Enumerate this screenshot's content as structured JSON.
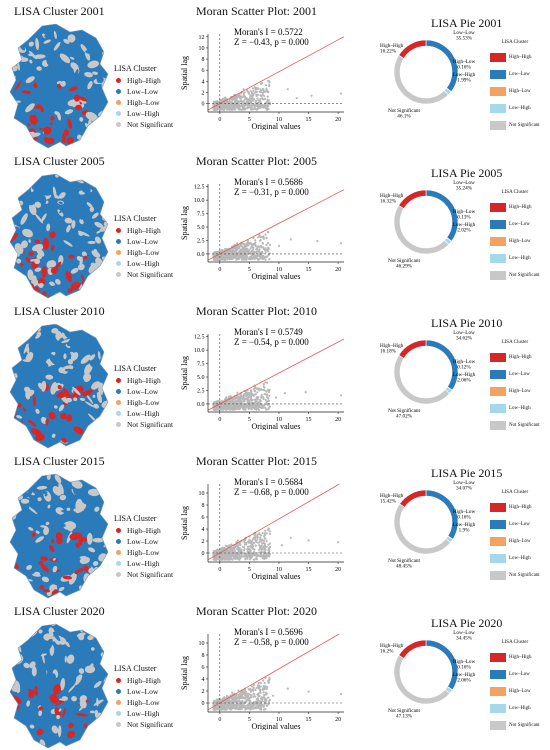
{
  "legend": {
    "title": "LISA Cluster",
    "items": [
      {
        "label": "High–High",
        "color": "#d62728"
      },
      {
        "label": "Low–Low",
        "color": "#2b7bba"
      },
      {
        "label": "High–Low",
        "color": "#f4a261"
      },
      {
        "label": "Low–High",
        "color": "#a6d8ec"
      },
      {
        "label": "Not Significant",
        "color": "#c8c8c8"
      }
    ]
  },
  "panels": [
    {
      "map_title": "LISA Cluster 2001",
      "scatter_title": "Moran Scatter Plot: 2001",
      "moran_line": "Moran's I = 0.5722",
      "z_line": "Z = −0.43, p = 0.000",
      "pie_title": "LISA Pie 2001",
      "chart_data": {
        "type": "scatter",
        "title": "Moran Scatter Plot: 2001",
        "xlabel": "Original values",
        "ylabel": "Spatial lag",
        "xlim": [
          -2,
          21
        ],
        "ylim": [
          -1.5,
          12.5
        ],
        "xticks": [
          0,
          5,
          10,
          15,
          20
        ],
        "yticks": [
          0,
          2,
          4,
          6,
          8,
          10,
          12
        ],
        "slope": 0.5722,
        "outliers": [
          [
            20.5,
            1.8
          ],
          [
            15.5,
            1.4
          ],
          [
            13.0,
            1.0
          ],
          [
            11.5,
            2.6
          ]
        ]
      },
      "pie": {
        "type": "pie",
        "slices": [
          {
            "name": "Low–Low",
            "value": 35.53,
            "color": "#2b7bba"
          },
          {
            "name": "High–Low",
            "value": 0.16,
            "color": "#f4a261"
          },
          {
            "name": "Low–High",
            "value": 1.99,
            "color": "#a6d8ec"
          },
          {
            "name": "Not Significant",
            "value": 46.1,
            "color": "#c8c8c8"
          },
          {
            "name": "High–High",
            "value": 16.22,
            "color": "#d62728"
          }
        ],
        "labels": {
          "ll": "35.53%",
          "hl": "0.16%",
          "lh": "1.99%",
          "ns": "46.1%",
          "hh": "16.22%"
        }
      }
    },
    {
      "map_title": "LISA Cluster 2005",
      "scatter_title": "Moran Scatter Plot: 2005",
      "moran_line": "Moran's I = 0.5686",
      "z_line": "Z = −0.31, p = 0.000",
      "pie_title": "LISA Pie 2005",
      "chart_data": {
        "type": "scatter",
        "title": "Moran Scatter Plot: 2005",
        "xlabel": "Original values",
        "ylabel": "Spatial lag",
        "xlim": [
          -2,
          21
        ],
        "ylim": [
          -1.5,
          13
        ],
        "xticks": [
          0,
          5,
          10,
          15,
          20
        ],
        "yticks": [
          0.0,
          2.5,
          5.0,
          7.5,
          10.0,
          12.5
        ],
        "slope": 0.5686,
        "outliers": [
          [
            20.5,
            2.0
          ],
          [
            16.5,
            2.4
          ],
          [
            12.0,
            2.7
          ],
          [
            10.0,
            1.5
          ]
        ]
      },
      "pie": {
        "type": "pie",
        "slices": [
          {
            "name": "Low–Low",
            "value": 35.24,
            "color": "#2b7bba"
          },
          {
            "name": "High–Low",
            "value": 0.13,
            "color": "#f4a261"
          },
          {
            "name": "Low–High",
            "value": 2.02,
            "color": "#a6d8ec"
          },
          {
            "name": "Not Significant",
            "value": 46.29,
            "color": "#c8c8c8"
          },
          {
            "name": "High–High",
            "value": 16.32,
            "color": "#d62728"
          }
        ],
        "labels": {
          "ll": "35.24%",
          "hl": "0.13%",
          "lh": "2.02%",
          "ns": "46.29%",
          "hh": "16.32%"
        }
      }
    },
    {
      "map_title": "LISA Cluster 2010",
      "scatter_title": "Moran Scatter Plot: 2010",
      "moran_line": "Moran's I = 0.5749",
      "z_line": "Z = −0.54, p = 0.000",
      "pie_title": "LISA Pie 2010",
      "chart_data": {
        "type": "scatter",
        "title": "Moran Scatter Plot: 2010",
        "xlabel": "Original values",
        "ylabel": "Spatial lag",
        "xlim": [
          -2,
          21
        ],
        "ylim": [
          -1.5,
          13
        ],
        "xticks": [
          0,
          5,
          10,
          15,
          20
        ],
        "yticks": [
          0.0,
          2.5,
          5.0,
          7.5,
          10.0,
          12.5
        ],
        "slope": 0.5749,
        "outliers": [
          [
            20.5,
            1.6
          ],
          [
            14.5,
            2.2
          ],
          [
            11.0,
            2.0
          ],
          [
            9.5,
            1.2
          ]
        ]
      },
      "pie": {
        "type": "pie",
        "slices": [
          {
            "name": "Low–Low",
            "value": 34.62,
            "color": "#2b7bba"
          },
          {
            "name": "High–Low",
            "value": 0.12,
            "color": "#f4a261"
          },
          {
            "name": "Low–High",
            "value": 2.06,
            "color": "#a6d8ec"
          },
          {
            "name": "Not Significant",
            "value": 47.02,
            "color": "#c8c8c8"
          },
          {
            "name": "High–High",
            "value": 16.18,
            "color": "#d62728"
          }
        ],
        "labels": {
          "ll": "34.62%",
          "hl": "0.12%",
          "lh": "2.06%",
          "ns": "47.02%",
          "hh": "16.18%"
        }
      }
    },
    {
      "map_title": "LISA Cluster 2015",
      "scatter_title": "Moran Scatter Plot: 2015",
      "moran_line": "Moran's I = 0.5684",
      "z_line": "Z = −0.68, p = 0.000",
      "pie_title": "LISA Pie 2015",
      "chart_data": {
        "type": "scatter",
        "title": "Moran Scatter Plot: 2015",
        "xlabel": "Original values",
        "ylabel": "Spatial lag",
        "xlim": [
          -2,
          21
        ],
        "ylim": [
          -1.5,
          11.5
        ],
        "xticks": [
          0,
          5,
          10,
          15,
          20
        ],
        "yticks": [
          0,
          2,
          4,
          6,
          8,
          10
        ],
        "slope": 0.5684,
        "outliers": [
          [
            20.0,
            1.8
          ],
          [
            15.0,
            2.1
          ],
          [
            12.0,
            2.5
          ],
          [
            10.5,
            1.3
          ]
        ]
      },
      "pie": {
        "type": "pie",
        "slices": [
          {
            "name": "Low–Low",
            "value": 34.07,
            "color": "#2b7bba"
          },
          {
            "name": "High–Low",
            "value": 0.16,
            "color": "#f4a261"
          },
          {
            "name": "Low–High",
            "value": 1.9,
            "color": "#a6d8ec"
          },
          {
            "name": "Not Significant",
            "value": 48.45,
            "color": "#c8c8c8"
          },
          {
            "name": "High–High",
            "value": 15.42,
            "color": "#d62728"
          }
        ],
        "labels": {
          "ll": "34.07%",
          "hl": "0.16%",
          "lh": "1.9%",
          "ns": "48.45%",
          "hh": "15.42%"
        }
      }
    },
    {
      "map_title": "LISA Cluster 2020",
      "scatter_title": "Moran Scatter Plot: 2020",
      "moran_line": "Moran's I = 0.5696",
      "z_line": "Z = −0.58, p = 0.000",
      "pie_title": "LISA Pie 2020",
      "chart_data": {
        "type": "scatter",
        "title": "Moran Scatter Plot: 2020",
        "xlabel": "Original values",
        "ylabel": "Spatial lag",
        "xlim": [
          -2,
          21
        ],
        "ylim": [
          -1.5,
          11.5
        ],
        "xticks": [
          0,
          5,
          10,
          15,
          20
        ],
        "yticks": [
          0,
          2,
          4,
          6,
          8,
          10
        ],
        "slope": 0.5696,
        "outliers": [
          [
            20.5,
            1.5
          ],
          [
            15.0,
            1.9
          ],
          [
            11.5,
            2.4
          ],
          [
            9.0,
            1.2
          ]
        ]
      },
      "pie": {
        "type": "pie",
        "slices": [
          {
            "name": "Low–Low",
            "value": 34.45,
            "color": "#2b7bba"
          },
          {
            "name": "High–Low",
            "value": 0.16,
            "color": "#f4a261"
          },
          {
            "name": "Low–High",
            "value": 2.06,
            "color": "#a6d8ec"
          },
          {
            "name": "Not Significant",
            "value": 47.13,
            "color": "#c8c8c8"
          },
          {
            "name": "High–High",
            "value": 16.2,
            "color": "#d62728"
          }
        ],
        "labels": {
          "ll": "34.45%",
          "hl": "0.16%",
          "lh": "2.06%",
          "ns": "47.13%",
          "hh": "16.2%"
        }
      }
    }
  ]
}
